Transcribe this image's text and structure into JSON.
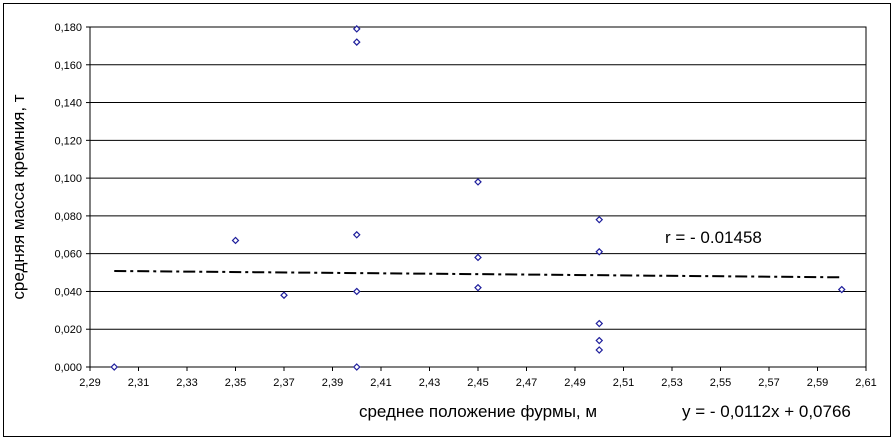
{
  "chart_data": {
    "type": "scatter",
    "title": "",
    "xlabel": "среднее положение фурмы, м",
    "ylabel": "средняя масса кремния, т",
    "xlim": [
      2.29,
      2.61
    ],
    "ylim": [
      0,
      0.18
    ],
    "x_ticks": [
      "2,29",
      "2,31",
      "2,33",
      "2,35",
      "2,37",
      "2,39",
      "2,41",
      "2,43",
      "2,45",
      "2,47",
      "2,49",
      "2,51",
      "2,53",
      "2,55",
      "2,57",
      "2,59",
      "2,61"
    ],
    "y_ticks": [
      "0,000",
      "0,020",
      "0,040",
      "0,060",
      "0,080",
      "0,100",
      "0,120",
      "0,140",
      "0,160",
      "0,180"
    ],
    "grid": "horizontal",
    "legend": "none",
    "series": [
      {
        "marker": "diamond",
        "color": "#1f1f9c",
        "points": [
          {
            "x": 2.3,
            "y": 0.0
          },
          {
            "x": 2.35,
            "y": 0.067
          },
          {
            "x": 2.37,
            "y": 0.038
          },
          {
            "x": 2.4,
            "y": 0.179
          },
          {
            "x": 2.4,
            "y": 0.172
          },
          {
            "x": 2.4,
            "y": 0.07
          },
          {
            "x": 2.4,
            "y": 0.04
          },
          {
            "x": 2.4,
            "y": 0.0
          },
          {
            "x": 2.45,
            "y": 0.098
          },
          {
            "x": 2.45,
            "y": 0.058
          },
          {
            "x": 2.45,
            "y": 0.042
          },
          {
            "x": 2.5,
            "y": 0.078
          },
          {
            "x": 2.5,
            "y": 0.061
          },
          {
            "x": 2.5,
            "y": 0.023
          },
          {
            "x": 2.5,
            "y": 0.014
          },
          {
            "x": 2.5,
            "y": 0.009
          },
          {
            "x": 2.6,
            "y": 0.041
          }
        ]
      }
    ],
    "trendline": {
      "style": "dash-dot",
      "color": "#000000",
      "slope": -0.0112,
      "intercept": 0.0766,
      "x_range": [
        2.3,
        2.6
      ]
    },
    "annotations": {
      "correlation": "r = - 0.01458",
      "equation": "y = - 0,0112x + 0,0766"
    }
  }
}
